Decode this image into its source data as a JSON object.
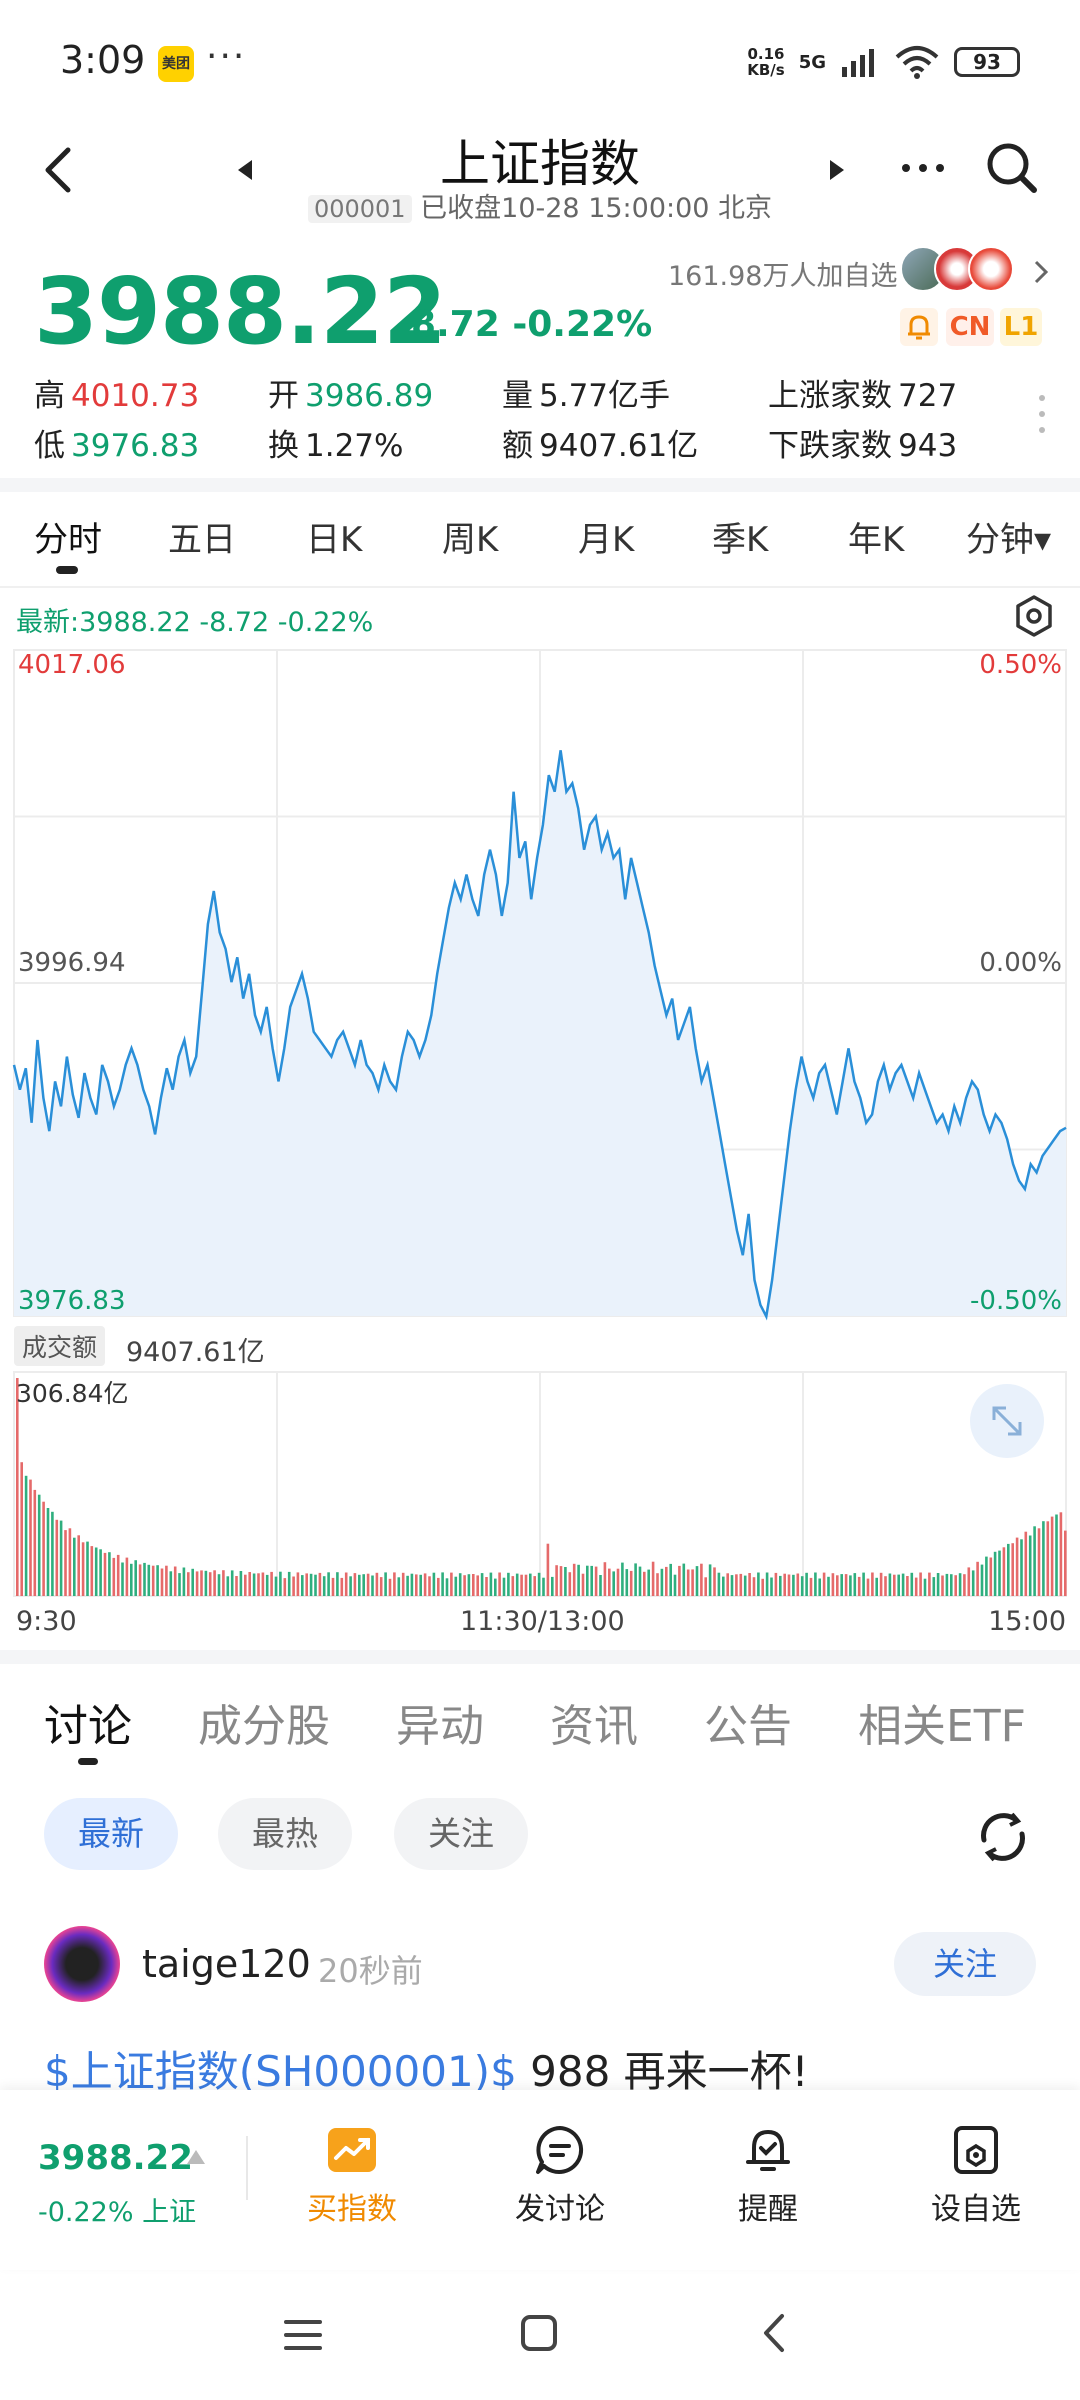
{
  "status_bar": {
    "time": "3:09",
    "app_icon_label": "美团",
    "more": "···",
    "net_speed_value": "0.16",
    "net_speed_unit": "KB/s",
    "network": "5G",
    "battery": "93"
  },
  "header": {
    "title": "上证指数",
    "code": "000001",
    "status": "已收盘10-28 15:00:00 北京"
  },
  "quote": {
    "price": "3988.22",
    "change": "-8.72",
    "change_pct": "-0.22%",
    "watchers": "161.98万人加自选",
    "badges": {
      "cn": "CN",
      "l1": "L1"
    },
    "stats": {
      "high_label": "高",
      "high": "4010.73",
      "low_label": "低",
      "low": "3976.83",
      "open_label": "开",
      "open": "3986.89",
      "turnover_label": "换",
      "turnover": "1.27%",
      "volume_label": "量",
      "volume": "5.77亿手",
      "amount_label": "额",
      "amount": "9407.61亿",
      "up_label": "上涨家数",
      "up": "727",
      "down_label": "下跌家数",
      "down": "943"
    }
  },
  "period_tabs": [
    "分时",
    "五日",
    "日K",
    "周K",
    "月K",
    "季K",
    "年K",
    "分钟▾"
  ],
  "chart_data": {
    "type": "line",
    "latest_label": "最新:3988.22  -8.72  -0.22%",
    "y_labels": {
      "top": "4017.06",
      "mid": "3996.94",
      "bottom": "3976.83"
    },
    "pct_labels": {
      "top": "0.50%",
      "mid": "0.00%",
      "bottom": "-0.50%"
    },
    "ylim": [
      3976.83,
      4017.06
    ],
    "x_labels": {
      "start": "9:30",
      "mid": "11:30/13:00",
      "end": "15:00"
    },
    "prices": [
      3992.0,
      3990.5,
      3991.8,
      3988.5,
      3993.5,
      3990.0,
      3988.0,
      3991.0,
      3989.5,
      3992.5,
      3990.2,
      3988.8,
      3991.5,
      3990.0,
      3989.0,
      3992.0,
      3991.0,
      3989.5,
      3990.5,
      3992.0,
      3993.0,
      3992.0,
      3990.5,
      3989.5,
      3987.8,
      3990.0,
      3991.8,
      3990.5,
      3992.5,
      3993.5,
      3991.5,
      3992.5,
      3996.5,
      4000.5,
      4002.5,
      4000.0,
      3999.0,
      3997.0,
      3998.5,
      3996.0,
      3997.5,
      3995.0,
      3994.0,
      3995.5,
      3993.0,
      3991.0,
      3993.0,
      3995.5,
      3996.5,
      3997.5,
      3996.0,
      3994.0,
      3993.5,
      3993.0,
      3992.5,
      3993.5,
      3994.0,
      3993.0,
      3992.0,
      3993.5,
      3992.0,
      3991.5,
      3990.5,
      3992.0,
      3991.0,
      3990.5,
      3992.5,
      3994.0,
      3993.5,
      3992.5,
      3993.5,
      3995.0,
      3997.5,
      3999.5,
      4001.5,
      4003.0,
      4002.0,
      4003.5,
      4002.0,
      4001.0,
      4003.5,
      4005.0,
      4003.5,
      4001.0,
      4003.0,
      4008.5,
      4004.5,
      4005.5,
      4002.0,
      4004.5,
      4006.5,
      4009.5,
      4008.5,
      4011.0,
      4008.5,
      4009.0,
      4007.5,
      4005.0,
      4006.5,
      4007.0,
      4005.0,
      4006.0,
      4004.5,
      4005.0,
      4002.0,
      4004.5,
      4003.0,
      4001.5,
      4000.0,
      3998.0,
      3996.5,
      3995.0,
      3996.0,
      3993.5,
      3994.5,
      3995.5,
      3993.0,
      3991.0,
      3992.0,
      3990.0,
      3988.0,
      3986.0,
      3984.0,
      3982.0,
      3980.5,
      3983.0,
      3979.0,
      3977.5,
      3976.8,
      3979.0,
      3982.0,
      3985.0,
      3988.0,
      3990.5,
      3992.5,
      3991.0,
      3990.0,
      3991.5,
      3992.0,
      3990.5,
      3989.0,
      3991.0,
      3993.0,
      3991.0,
      3990.0,
      3988.5,
      3989.0,
      3991.0,
      3992.0,
      3990.5,
      3991.5,
      3992.0,
      3991.0,
      3990.0,
      3991.5,
      3990.5,
      3989.5,
      3988.5,
      3989.0,
      3988.0,
      3989.5,
      3988.5,
      3990.0,
      3991.0,
      3990.5,
      3989.0,
      3988.0,
      3989.0,
      3988.5,
      3987.5,
      3986.0,
      3985.0,
      3984.5,
      3986.0,
      3985.5,
      3986.5,
      3987.0,
      3987.5,
      3988.0,
      3988.2
    ],
    "volume_label": "成交额",
    "volume_total": "9407.61亿",
    "volume_max_label": "306.84亿",
    "volume_max": 306.84
  },
  "discussion": {
    "tabs": [
      "讨论",
      "成分股",
      "异动",
      "资讯",
      "公告",
      "相关ETF"
    ],
    "filters": [
      "最新",
      "最热",
      "关注"
    ],
    "post": {
      "user": "taige120",
      "time": "20秒前",
      "follow": "关注",
      "tag": "$上证指数(SH000001)$",
      "text": " 988 再来一杯!"
    }
  },
  "bottom_bar": {
    "price": "3988.22",
    "change": "-0.22% 上证",
    "buy": "买指数",
    "discuss": "发讨论",
    "remind": "提醒",
    "watchlist": "设自选"
  },
  "colors": {
    "down": "#0f9f6e",
    "up": "#e23b3b",
    "line": "#2a8fd8",
    "accent": "#2f6fd6"
  }
}
